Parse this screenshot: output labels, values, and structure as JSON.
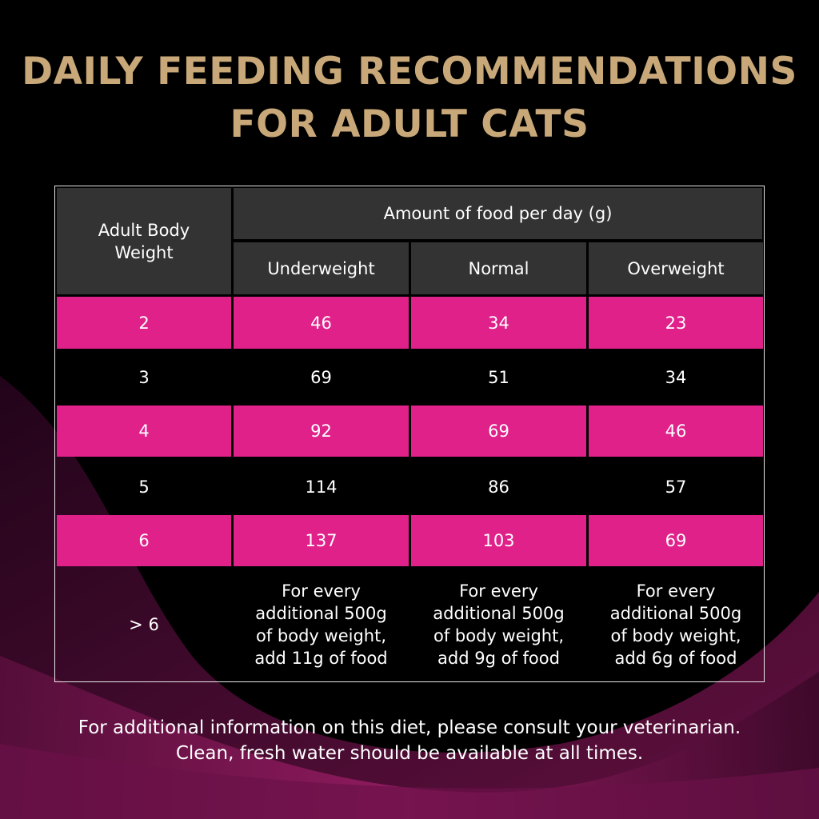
{
  "header": {
    "title_lines": [
      "DAILY FEEDING RECOMMENDATIONS",
      "FOR ADULT CATS"
    ]
  },
  "table": {
    "row_header": "Adult Body Weight",
    "group_header": "Amount of food per day (g)",
    "columns": [
      "Underweight",
      "Normal",
      "Overweight"
    ],
    "rows": [
      [
        "2",
        "46",
        "34",
        "23"
      ],
      [
        "3",
        "69",
        "51",
        "34"
      ],
      [
        "4",
        "92",
        "69",
        "46"
      ],
      [
        "5",
        "114",
        "86",
        "57"
      ],
      [
        "6",
        "137",
        "103",
        "69"
      ],
      [
        "> 6",
        "For every additional 500g of body weight, add 11g of food",
        "For every additional 500g of body weight, add 9g of food",
        "For every additional 500g of body weight, add 6g of food"
      ]
    ]
  },
  "footer": {
    "lines": [
      "For additional information on this diet, please consult your veterinarian.",
      "Clean, fresh water should be available at all times."
    ]
  }
}
